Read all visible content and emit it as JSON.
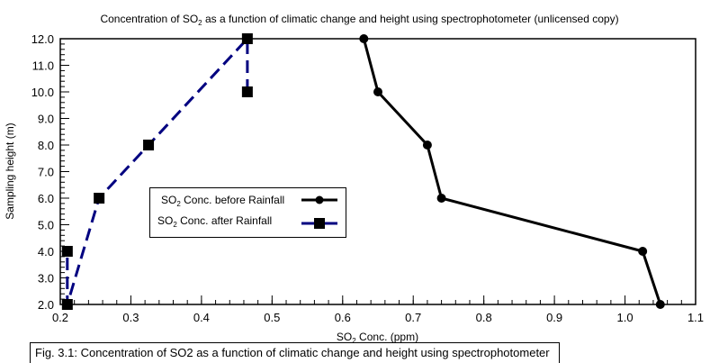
{
  "chart_data": {
    "type": "line",
    "title": "Concentration of SO2 as a function of climatic change and height using spectrophotometer (unlicensed copy)",
    "title_parts": {
      "pre": "Concentration of SO",
      "sub": "2",
      "post": " as a function of climatic change and height using spectrophotometer (unlicensed copy)"
    },
    "xlabel": "SO2 Conc. (ppm)",
    "xlabel_parts": {
      "pre": "SO",
      "sub": "2",
      "post": " Conc. (ppm)"
    },
    "ylabel": "Sampling height (m)",
    "xlim": [
      0.2,
      1.1
    ],
    "ylim": [
      2.0,
      12.0
    ],
    "x_ticks": [
      "0.2",
      "0.3",
      "0.4",
      "0.5",
      "0.6",
      "0.7",
      "0.8",
      "0.9",
      "1.0",
      "1.1"
    ],
    "x_tick_values": [
      0.2,
      0.3,
      0.4,
      0.5,
      0.6,
      0.7,
      0.8,
      0.9,
      1.0,
      1.1
    ],
    "x_minor_step": 0.02,
    "y_ticks": [
      "2.0",
      "3.0",
      "4.0",
      "5.0",
      "6.0",
      "7.0",
      "8.0",
      "9.0",
      "10.0",
      "11.0",
      "12.0"
    ],
    "y_tick_values": [
      2,
      3,
      4,
      5,
      6,
      7,
      8,
      9,
      10,
      11,
      12
    ],
    "y_minor_step": 0.2,
    "grid": false,
    "legend_position": "center-left",
    "series": [
      {
        "name": "SO2 Conc. before Rainfall",
        "label_parts": {
          "pre": "SO",
          "sub": "2",
          "post": " Conc. before Rainfall"
        },
        "color": "#000000",
        "line_style": "solid",
        "marker": "circle",
        "x": [
          0.63,
          0.65,
          0.72,
          0.74,
          1.025,
          1.05
        ],
        "y": [
          12.0,
          10.0,
          8.0,
          6.0,
          4.0,
          2.0
        ]
      },
      {
        "name": "SO2 Conc. after Rainfall",
        "label_parts": {
          "pre": "SO",
          "sub": "2",
          "post": " Conc. after Rainfall"
        },
        "color": "#000080",
        "marker_color": "#000000",
        "line_style": "dashed",
        "marker": "square",
        "x": [
          0.465,
          0.465,
          0.325,
          0.255,
          0.21,
          0.21
        ],
        "y": [
          10.0,
          12.0,
          8.0,
          6.0,
          2.0,
          4.0
        ]
      }
    ]
  },
  "caption": "Fig. 3.1: Concentration of SO2 as a function of climatic change and height using spectrophotometer"
}
